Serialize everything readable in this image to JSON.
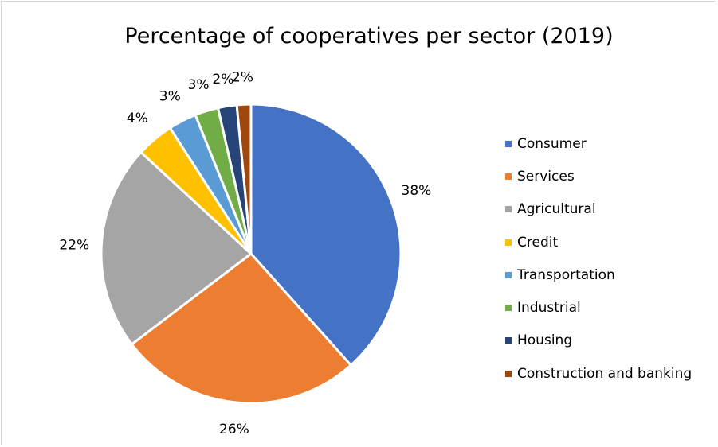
{
  "chart_data": {
    "type": "pie",
    "title": "Percentage of cooperatives per sector (2019)",
    "categories": [
      "Consumer",
      "Services",
      "Agricultural",
      "Credit",
      "Transportation",
      "Industrial",
      "Housing",
      "Construction and banking"
    ],
    "values": [
      38,
      26,
      22,
      4,
      3,
      2.5,
      2,
      1.5
    ],
    "data_labels": [
      "38%",
      "26%",
      "22%",
      "4%",
      "3%",
      "3%",
      "2%",
      "2%"
    ],
    "colors": [
      "#4472c4",
      "#ed7d31",
      "#a5a5a5",
      "#ffc000",
      "#5b9bd5",
      "#70ad47",
      "#264478",
      "#9e480e"
    ],
    "legend_position": "right",
    "start_angle_deg": 0,
    "direction": "clockwise"
  }
}
